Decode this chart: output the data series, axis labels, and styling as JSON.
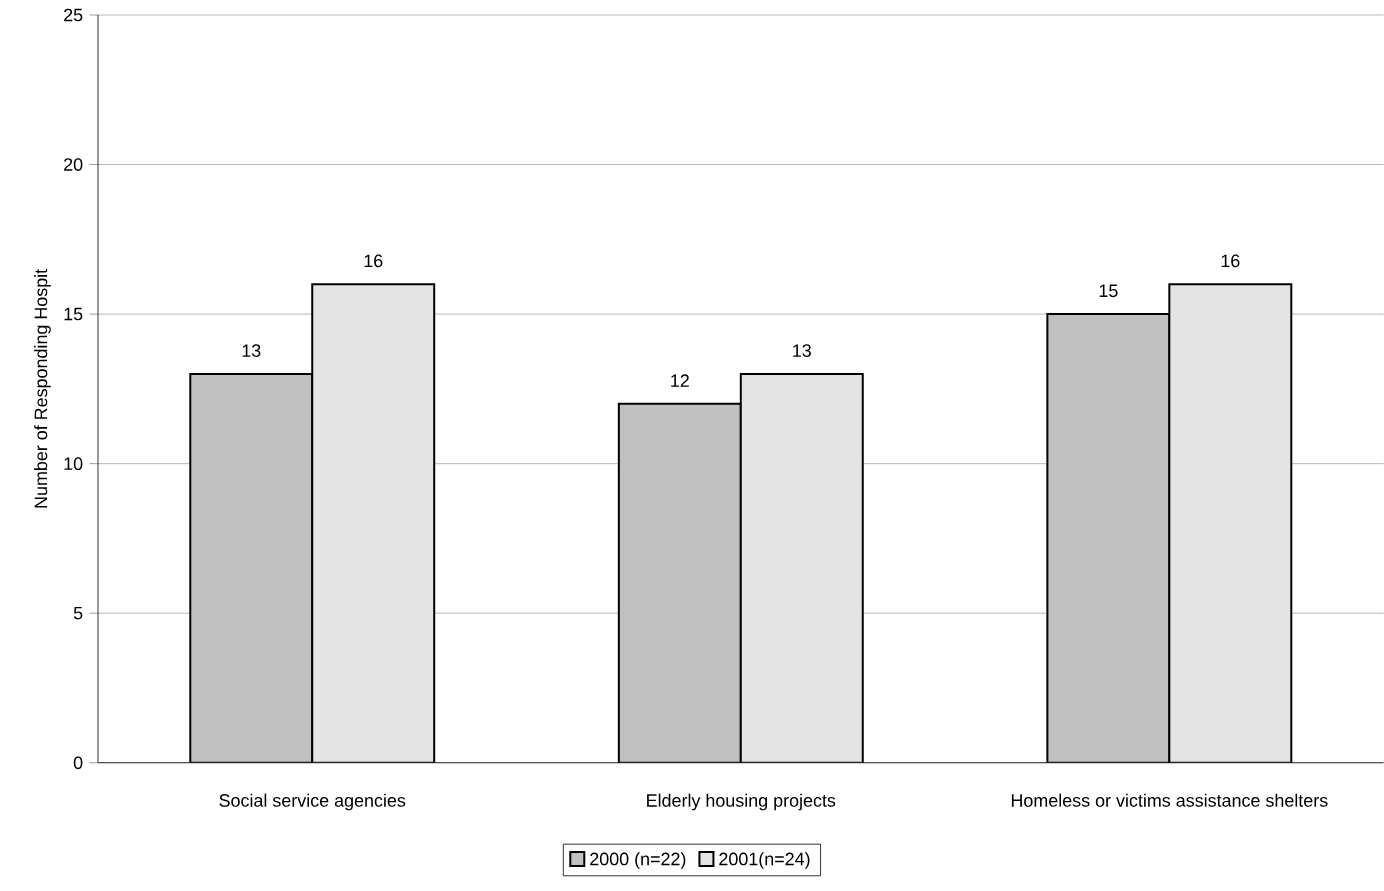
{
  "chart_data": {
    "type": "bar",
    "ylabel": "Number of Responding Hospit",
    "categories": [
      "Social service agencies",
      "Elderly housing projects",
      "Homeless or victims assistance shelters"
    ],
    "series": [
      {
        "name": "2000 (n=22)",
        "color": "#c0c0c0",
        "values": [
          13,
          12,
          15
        ]
      },
      {
        "name": "2001(n=24)",
        "color": "#e4e4e4",
        "values": [
          16,
          13,
          16
        ]
      }
    ],
    "ylim": [
      0,
      25
    ],
    "yticks": [
      0,
      5,
      10,
      15,
      20,
      25
    ],
    "grid": "y",
    "legend": "bottom",
    "data_labels": true
  }
}
